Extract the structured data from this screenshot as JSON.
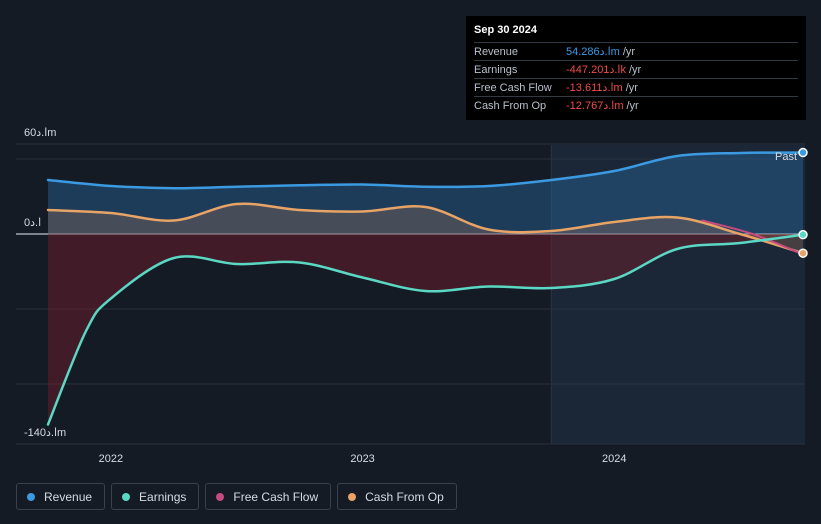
{
  "chart_data": {
    "type": "area",
    "title": "",
    "y_unit_label": "ا.دm",
    "ylim": [
      -140,
      60
    ],
    "y_ticks": [
      {
        "value": 60,
        "label": "60ا.دm"
      },
      {
        "value": 0,
        "label": "0ا.د"
      },
      {
        "value": -140,
        "label": "-140ا.دm"
      }
    ],
    "x_range": [
      2021.75,
      2024.75
    ],
    "x_ticks": [
      {
        "value": 2022,
        "label": "2022"
      },
      {
        "value": 2023,
        "label": "2023"
      },
      {
        "value": 2024,
        "label": "2024"
      }
    ],
    "past_start": 2023.75,
    "past_label": "Past",
    "series": [
      {
        "name": "Revenue",
        "color": "#3b9ae1",
        "points": [
          [
            2021.75,
            36
          ],
          [
            2022.0,
            32
          ],
          [
            2022.25,
            30.5
          ],
          [
            2022.5,
            31.5
          ],
          [
            2022.75,
            32.5
          ],
          [
            2023.0,
            33
          ],
          [
            2023.25,
            31.5
          ],
          [
            2023.5,
            32
          ],
          [
            2023.75,
            36
          ],
          [
            2024.0,
            42
          ],
          [
            2024.25,
            52
          ],
          [
            2024.5,
            54
          ],
          [
            2024.75,
            54.3
          ]
        ]
      },
      {
        "name": "Earnings",
        "color": "#5ad8c4",
        "points": [
          [
            2021.75,
            -127
          ],
          [
            2021.9,
            -65
          ],
          [
            2022.0,
            -43
          ],
          [
            2022.25,
            -16
          ],
          [
            2022.5,
            -20
          ],
          [
            2022.75,
            -19
          ],
          [
            2023.0,
            -29
          ],
          [
            2023.25,
            -38
          ],
          [
            2023.5,
            -35
          ],
          [
            2023.75,
            -36
          ],
          [
            2024.0,
            -30
          ],
          [
            2024.25,
            -10
          ],
          [
            2024.5,
            -6
          ],
          [
            2024.75,
            -0.45
          ]
        ]
      },
      {
        "name": "Free Cash Flow",
        "color": "#c54a7f",
        "points": [
          [
            2024.35,
            9
          ],
          [
            2024.55,
            0
          ],
          [
            2024.75,
            -13.6
          ]
        ]
      },
      {
        "name": "Cash From Op",
        "color": "#e8a366",
        "points": [
          [
            2021.75,
            16
          ],
          [
            2022.0,
            14
          ],
          [
            2022.25,
            9
          ],
          [
            2022.5,
            20
          ],
          [
            2022.75,
            16
          ],
          [
            2023.0,
            15
          ],
          [
            2023.25,
            18
          ],
          [
            2023.5,
            3
          ],
          [
            2023.75,
            2
          ],
          [
            2024.0,
            8
          ],
          [
            2024.25,
            11
          ],
          [
            2024.5,
            0
          ],
          [
            2024.75,
            -12.8
          ]
        ]
      }
    ],
    "tooltip": {
      "date": "Sep 30 2024",
      "rows": [
        {
          "label": "Revenue",
          "value": "54.286ا.دm",
          "unit": "/yr",
          "color": "#3b9ae1"
        },
        {
          "label": "Earnings",
          "value": "-447.201ا.دk",
          "unit": "/yr",
          "color": "#f04b4b"
        },
        {
          "label": "Free Cash Flow",
          "value": "-13.611ا.دm",
          "unit": "/yr",
          "color": "#f04b4b"
        },
        {
          "label": "Cash From Op",
          "value": "-12.767ا.دm",
          "unit": "/yr",
          "color": "#f04b4b"
        }
      ]
    },
    "legend": [
      {
        "name": "Revenue",
        "color": "#3b9ae1"
      },
      {
        "name": "Earnings",
        "color": "#5ad8c4"
      },
      {
        "name": "Free Cash Flow",
        "color": "#c54a7f"
      },
      {
        "name": "Cash From Op",
        "color": "#e8a366"
      }
    ]
  }
}
